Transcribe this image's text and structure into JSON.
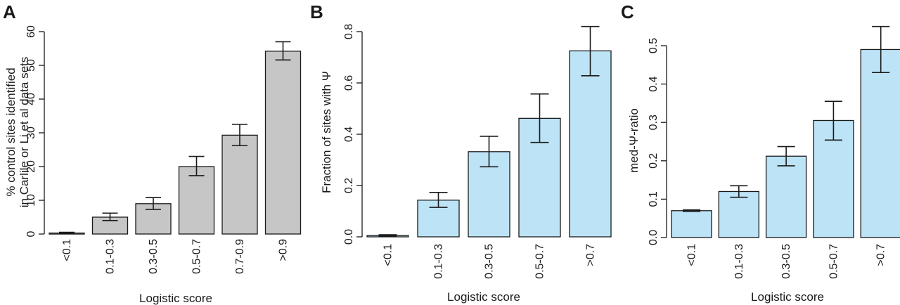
{
  "colors": {
    "gray_bar": "#c6c6c6",
    "blue_bar": "#bde3f6",
    "ink": "#1a1a1a"
  },
  "chart_data": [
    {
      "panel": "A",
      "type": "bar",
      "categories": [
        "<0.1",
        "0.1-0.3",
        "0.3-0.5",
        "0.5-0.7",
        "0.7-0.9",
        ">0.9"
      ],
      "values": [
        0.3,
        5,
        9,
        20,
        29.3,
        54.2
      ],
      "error_low": [
        0.1,
        4,
        7.3,
        17.3,
        26.2,
        51.6
      ],
      "error_high": [
        0.5,
        6.2,
        10.8,
        23,
        32.5,
        57
      ],
      "xlabel": "Logistic score",
      "ylabel_lines": [
        "% control sites identified",
        "in Carlile or Li et al data sets"
      ],
      "ylim": [
        0,
        60
      ],
      "yticks": [
        "0",
        "10",
        "20",
        "30",
        "40",
        "50",
        "60"
      ],
      "color": "gray"
    },
    {
      "panel": "B",
      "type": "bar",
      "categories": [
        "<0.1",
        "0.1-0.3",
        "0.3-0.5",
        "0.5-0.7",
        ">0.7"
      ],
      "values": [
        0.005,
        0.143,
        0.332,
        0.462,
        0.725
      ],
      "error_low": [
        0.002,
        0.115,
        0.273,
        0.368,
        0.628
      ],
      "error_high": [
        0.008,
        0.173,
        0.392,
        0.557,
        0.82
      ],
      "xlabel": "Logistic score",
      "ylabel_lines": [
        "Fraction of sites with Ψ"
      ],
      "ylim": [
        0,
        0.8
      ],
      "yticks": [
        "0.0",
        "0.2",
        "0.4",
        "0.6",
        "0.8"
      ],
      "color": "blue"
    },
    {
      "panel": "C",
      "type": "bar",
      "categories": [
        "<0.1",
        "0.1-0.3",
        "0.3-0.5",
        "0.5-0.7",
        ">0.7"
      ],
      "values": [
        0.07,
        0.12,
        0.212,
        0.305,
        0.49
      ],
      "error_low": [
        0.068,
        0.105,
        0.187,
        0.254,
        0.43
      ],
      "error_high": [
        0.072,
        0.135,
        0.237,
        0.355,
        0.55
      ],
      "xlabel": "Logistic score",
      "ylabel_lines": [
        "med-Ψ-ratio"
      ],
      "ylim": [
        0,
        0.5
      ],
      "yticks": [
        "0.0",
        "0.1",
        "0.2",
        "0.3",
        "0.4",
        "0.5"
      ],
      "color": "blue"
    }
  ]
}
